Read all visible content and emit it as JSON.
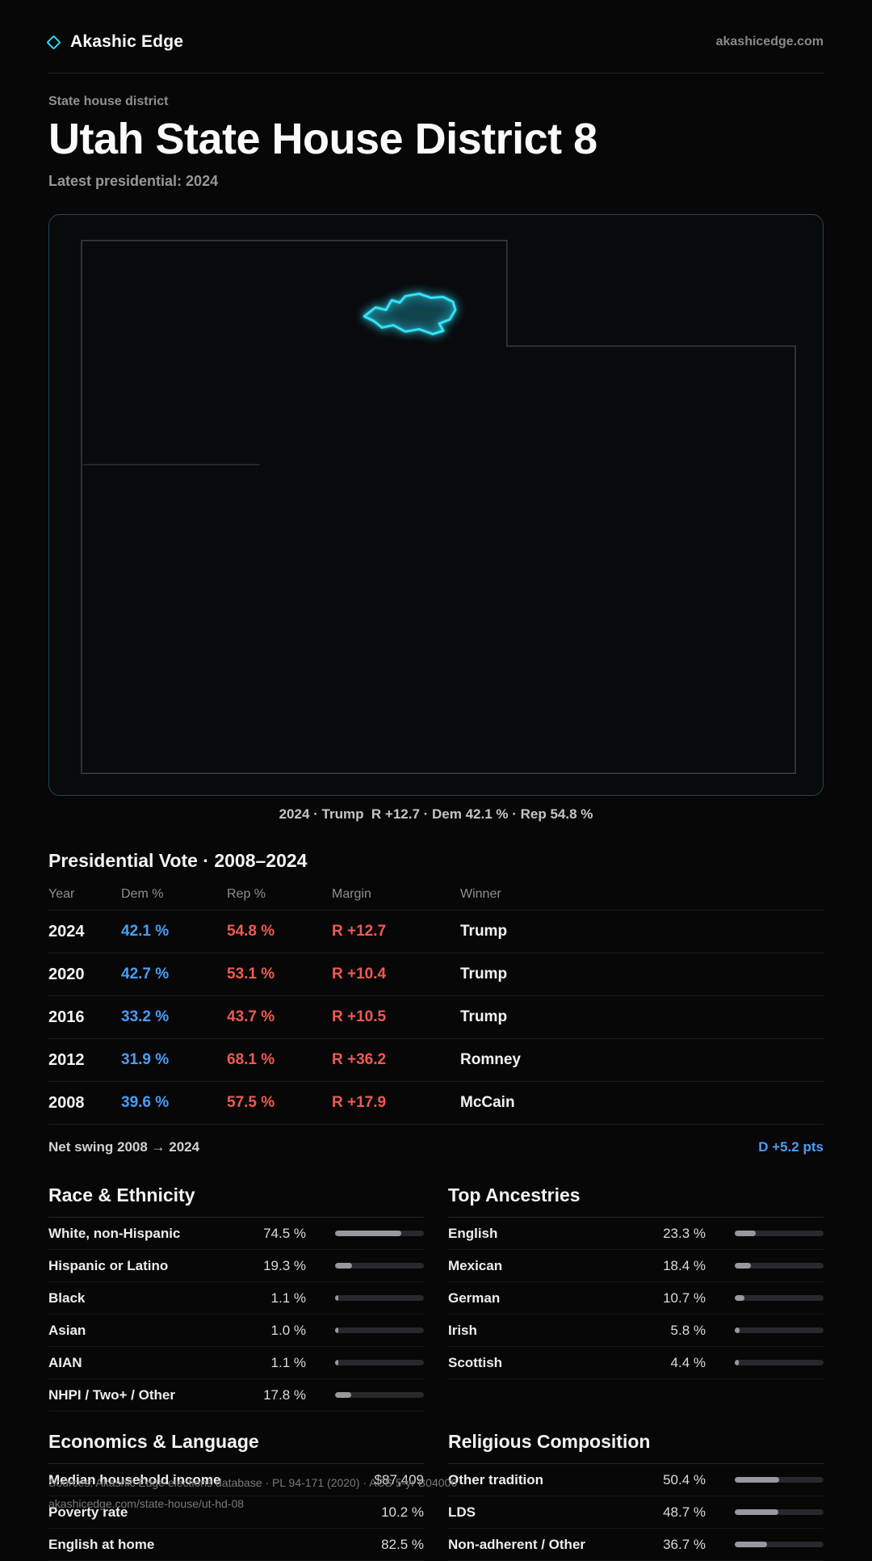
{
  "colors": {
    "background": "#070708",
    "accent_cyan": "#2bd9f2",
    "dem_blue": "#4a9df8",
    "rep_red": "#ef5a52",
    "bar_fill": "#97999d",
    "bar_track": "#27292c"
  },
  "header": {
    "brand": "Akashic Edge",
    "domain": "akashicedge.com"
  },
  "hero": {
    "eyebrow": "State house district",
    "title": "Utah State House District 8",
    "subtitle": "Latest presidential: 2024"
  },
  "map": {
    "caption": "2024 · Trump  R +12.7 · Dem 42.1 % · Rep 54.8 %",
    "highlight_icon": "district-shape"
  },
  "vote_table": {
    "title": "Presidential Vote · 2008–2024",
    "columns": [
      "Year",
      "Dem %",
      "Rep %",
      "Margin",
      "Winner"
    ],
    "rows": [
      {
        "year": "2024",
        "dem": "42.1 %",
        "rep": "54.8 %",
        "margin": "R +12.7",
        "winner": "Trump"
      },
      {
        "year": "2020",
        "dem": "42.7 %",
        "rep": "53.1 %",
        "margin": "R +10.4",
        "winner": "Trump"
      },
      {
        "year": "2016",
        "dem": "33.2 %",
        "rep": "43.7 %",
        "margin": "R +10.5",
        "winner": "Trump"
      },
      {
        "year": "2012",
        "dem": "31.9 %",
        "rep": "68.1 %",
        "margin": "R +36.2",
        "winner": "Romney"
      },
      {
        "year": "2008",
        "dem": "39.6 %",
        "rep": "57.5 %",
        "margin": "R +17.9",
        "winner": "McCain"
      }
    ],
    "net_swing_label": "Net swing 2008 → 2024",
    "net_swing_value": "D +5.2 pts"
  },
  "stats": {
    "race": {
      "title": "Race & Ethnicity",
      "rows": [
        {
          "label": "White, non-Hispanic",
          "value": "74.5 %",
          "pct": 74.5
        },
        {
          "label": "Hispanic or Latino",
          "value": "19.3 %",
          "pct": 19.3
        },
        {
          "label": "Black",
          "value": "1.1 %",
          "pct": 1.1
        },
        {
          "label": "Asian",
          "value": "1.0 %",
          "pct": 1.0
        },
        {
          "label": "AIAN",
          "value": "1.1 %",
          "pct": 1.1
        },
        {
          "label": "NHPI / Two+ / Other",
          "value": "17.8 %",
          "pct": 17.8
        }
      ]
    },
    "ancestries": {
      "title": "Top Ancestries",
      "rows": [
        {
          "label": "English",
          "value": "23.3 %",
          "pct": 23.3
        },
        {
          "label": "Mexican",
          "value": "18.4 %",
          "pct": 18.4
        },
        {
          "label": "German",
          "value": "10.7 %",
          "pct": 10.7
        },
        {
          "label": "Irish",
          "value": "5.8 %",
          "pct": 5.8
        },
        {
          "label": "Scottish",
          "value": "4.4 %",
          "pct": 4.4
        }
      ]
    },
    "economics": {
      "title": "Economics & Language",
      "rows": [
        {
          "label": "Median household income",
          "value": "$87,409"
        },
        {
          "label": "Poverty rate",
          "value": "10.2 %"
        },
        {
          "label": "English at home",
          "value": "82.5 %"
        }
      ]
    },
    "religion": {
      "title": "Religious Composition",
      "rows": [
        {
          "label": "Other tradition",
          "value": "50.4 %",
          "pct": 50.4
        },
        {
          "label": "LDS",
          "value": "48.7 %",
          "pct": 48.7
        },
        {
          "label": "Non-adherent / Other",
          "value": "36.7 %",
          "pct": 36.7
        }
      ]
    }
  },
  "footer": {
    "line1": "Sources: Akashic Edge elections database · PL 94-171 (2020) · ACS 5-yr B04006",
    "line2": "akashicedge.com/state-house/ut-hd-08"
  },
  "chart_data": [
    {
      "type": "table",
      "title": "Presidential Vote · 2008–2024",
      "columns": [
        "Year",
        "Dem %",
        "Rep %",
        "Margin",
        "Winner"
      ],
      "rows": [
        [
          "2024",
          42.1,
          54.8,
          "R +12.7",
          "Trump"
        ],
        [
          "2020",
          42.7,
          53.1,
          "R +10.4",
          "Trump"
        ],
        [
          "2016",
          33.2,
          43.7,
          "R +10.5",
          "Trump"
        ],
        [
          "2012",
          31.9,
          68.1,
          "R +36.2",
          "Romney"
        ],
        [
          "2008",
          39.6,
          57.5,
          "R +17.9",
          "McCain"
        ]
      ],
      "annotations": [
        "Net swing 2008 → 2024: D +5.2 pts",
        "Map caption: 2024 · Trump R +12.7 · Dem 42.1 % · Rep 54.8 %"
      ]
    },
    {
      "type": "bar",
      "title": "Race & Ethnicity",
      "categories": [
        "White, non-Hispanic",
        "Hispanic or Latino",
        "Black",
        "Asian",
        "AIAN",
        "NHPI / Two+ / Other"
      ],
      "values": [
        74.5,
        19.3,
        1.1,
        1.0,
        1.1,
        17.8
      ],
      "xlabel": "",
      "ylabel": "Percent",
      "ylim": [
        0,
        100
      ],
      "legend": false,
      "grid": false
    },
    {
      "type": "bar",
      "title": "Top Ancestries",
      "categories": [
        "English",
        "Mexican",
        "German",
        "Irish",
        "Scottish"
      ],
      "values": [
        23.3,
        18.4,
        10.7,
        5.8,
        4.4
      ],
      "xlabel": "",
      "ylabel": "Percent",
      "ylim": [
        0,
        100
      ],
      "legend": false,
      "grid": false
    },
    {
      "type": "table",
      "title": "Economics & Language",
      "columns": [
        "Metric",
        "Value"
      ],
      "rows": [
        [
          "Median household income",
          "$87,409"
        ],
        [
          "Poverty rate",
          "10.2 %"
        ],
        [
          "English at home",
          "82.5 %"
        ]
      ]
    },
    {
      "type": "bar",
      "title": "Religious Composition",
      "categories": [
        "Other tradition",
        "LDS",
        "Non-adherent / Other"
      ],
      "values": [
        50.4,
        48.7,
        36.7
      ],
      "xlabel": "",
      "ylabel": "Percent",
      "ylim": [
        0,
        100
      ],
      "legend": false,
      "grid": false
    }
  ]
}
